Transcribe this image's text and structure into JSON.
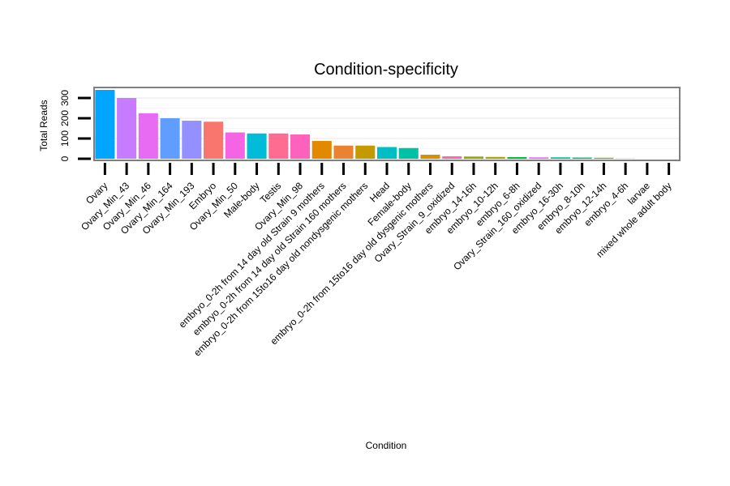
{
  "chart_data": {
    "type": "bar",
    "title": "Condition-specificity",
    "xlabel": "Condition",
    "ylabel": "Total Reads",
    "ylim": [
      0,
      350
    ],
    "yticks": [
      0,
      100,
      200,
      300
    ],
    "ytick_labels": [
      "0",
      "100",
      "200",
      "300"
    ],
    "grid": true,
    "legend": "none",
    "categories": [
      "Ovary",
      "Ovary_Min_43",
      "Ovary_Min_46",
      "Ovary_Min_164",
      "Ovary_Min_193",
      "Embryo",
      "Ovary_Min_50",
      "Male-body",
      "Testis",
      "Ovary_Min_98",
      "embryo_0-2h from 14 day old Strain 9 mothers",
      "embryo_0-2h from 14 day old Strain 160 mothers",
      "embryo_0-2h from 15to16 day old nondysgenic mothers",
      "Head",
      "Female-body",
      "embryo_0-2h from 15to16 day old dysgenic mothers",
      "Ovary_Strain_9_oxidized",
      "embryo_14-16h",
      "embryo_10-12h",
      "embryo_6-8h",
      "Ovary_Strain_160_oxidized",
      "embryo_16-30h",
      "embryo_8-10h",
      "embryo_12-14h",
      "embryo_4-6h",
      "larvae",
      "mixed whole adult body"
    ],
    "values": [
      340,
      300,
      225,
      200,
      188,
      183,
      130,
      125,
      125,
      120,
      88,
      65,
      65,
      58,
      53,
      20,
      12,
      11,
      9,
      8,
      7,
      7,
      6,
      5,
      1,
      0,
      0
    ],
    "colors": [
      "#00A5FF",
      "#C77CFF",
      "#E76BF3",
      "#619CFF",
      "#9590FF",
      "#F8766D",
      "#F564E3",
      "#00BCD8",
      "#FF6C91",
      "#FF62BC",
      "#E38900",
      "#EA8331",
      "#C49A00",
      "#00BFC4",
      "#00C1A3",
      "#D89000",
      "#FF67A4",
      "#99A800",
      "#ABA300",
      "#00BA38",
      "#E86BF7",
      "#00C19F",
      "#00BE67",
      "#7CAE00",
      "#53B400",
      "#00B4F0",
      "#00ABFD"
    ]
  }
}
